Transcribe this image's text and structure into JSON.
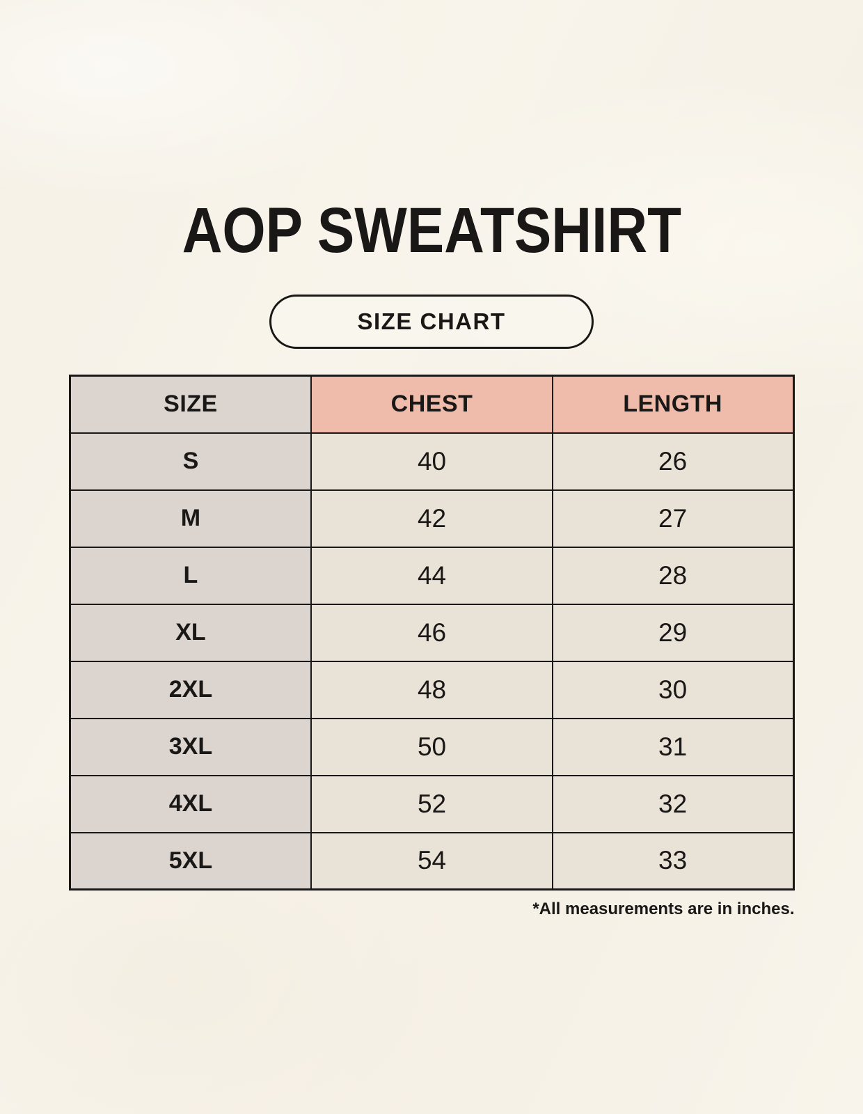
{
  "header": {
    "title": "AOP SWEATSHIRT",
    "badge_label": "SIZE CHART"
  },
  "colors": {
    "page_bg": "#f8f4eb",
    "label_cell_bg": "#dcd5cf",
    "measure_header_bg": "#efbcab",
    "value_cell_bg": "#e9e2d6",
    "border": "#1a1816",
    "text": "#1a1816"
  },
  "chart_data": {
    "type": "table",
    "title": "AOP SWEATSHIRT",
    "subtitle": "SIZE CHART",
    "columns": [
      "SIZE",
      "CHEST",
      "LENGTH"
    ],
    "rows": [
      [
        "S",
        "40",
        "26"
      ],
      [
        "M",
        "42",
        "27"
      ],
      [
        "L",
        "44",
        "28"
      ],
      [
        "XL",
        "46",
        "29"
      ],
      [
        "2XL",
        "48",
        "30"
      ],
      [
        "3XL",
        "50",
        "31"
      ],
      [
        "4XL",
        "52",
        "32"
      ],
      [
        "5XL",
        "54",
        "33"
      ]
    ],
    "units": "inches",
    "note": "*All measurements are in inches."
  }
}
